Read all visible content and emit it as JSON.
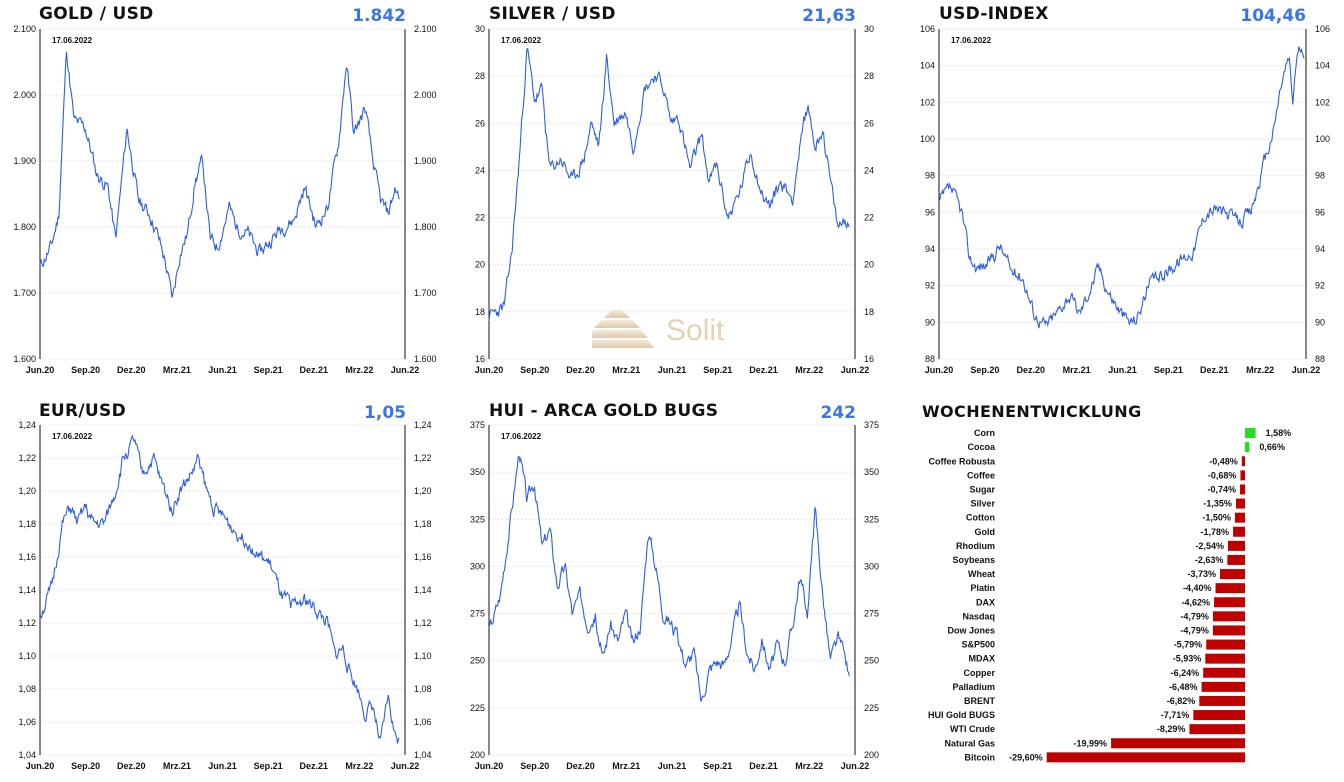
{
  "chart_data": [
    {
      "type": "line",
      "title": "GOLD / USD",
      "current_value": "1.842",
      "date_label": "17.06.2022",
      "y_ticks": [
        "1.600",
        "1.700",
        "1.800",
        "1.900",
        "2.000",
        "2.100"
      ],
      "ylim": [
        1600,
        2100
      ],
      "x_ticks": [
        "Jun.20",
        "Sep.20",
        "Dez.20",
        "Mrz.21",
        "Jun.21",
        "Sep.21",
        "Dez.21",
        "Mrz.22",
        "Jun.22"
      ],
      "color": "#2f5fe0",
      "key_points": [
        [
          0,
          1740
        ],
        [
          0.03,
          1770
        ],
        [
          0.05,
          1820
        ],
        [
          0.07,
          2070
        ],
        [
          0.09,
          1960
        ],
        [
          0.12,
          1950
        ],
        [
          0.15,
          1880
        ],
        [
          0.18,
          1860
        ],
        [
          0.2,
          1780
        ],
        [
          0.23,
          1950
        ],
        [
          0.26,
          1840
        ],
        [
          0.29,
          1820
        ],
        [
          0.31,
          1790
        ],
        [
          0.33,
          1750
        ],
        [
          0.35,
          1690
        ],
        [
          0.37,
          1760
        ],
        [
          0.39,
          1790
        ],
        [
          0.41,
          1870
        ],
        [
          0.43,
          1900
        ],
        [
          0.45,
          1780
        ],
        [
          0.47,
          1770
        ],
        [
          0.5,
          1830
        ],
        [
          0.52,
          1800
        ],
        [
          0.55,
          1790
        ],
        [
          0.58,
          1760
        ],
        [
          0.61,
          1780
        ],
        [
          0.64,
          1800
        ],
        [
          0.67,
          1810
        ],
        [
          0.7,
          1860
        ],
        [
          0.73,
          1800
        ],
        [
          0.76,
          1830
        ],
        [
          0.79,
          1930
        ],
        [
          0.81,
          2050
        ],
        [
          0.83,
          1940
        ],
        [
          0.86,
          1980
        ],
        [
          0.88,
          1900
        ],
        [
          0.9,
          1840
        ],
        [
          0.92,
          1820
        ],
        [
          0.94,
          1860
        ],
        [
          0.95,
          1842
        ]
      ]
    },
    {
      "type": "line",
      "title": "SILVER / USD",
      "current_value": "21,63",
      "date_label": "17.06.2022",
      "y_ticks": [
        "16",
        "18",
        "20",
        "22",
        "24",
        "26",
        "28",
        "30"
      ],
      "ylim": [
        16,
        30
      ],
      "x_ticks": [
        "Jun.20",
        "Sep.20",
        "Dez.20",
        "Mrz.21",
        "Jun.21",
        "Sep.21",
        "Dez.21",
        "Mrz.22",
        "Jun.22"
      ],
      "color": "#2f5fe0",
      "key_points": [
        [
          0,
          17.8
        ],
        [
          0.04,
          18.2
        ],
        [
          0.06,
          20.5
        ],
        [
          0.08,
          24.5
        ],
        [
          0.1,
          29.2
        ],
        [
          0.12,
          27
        ],
        [
          0.14,
          27.4
        ],
        [
          0.16,
          24
        ],
        [
          0.19,
          24.5
        ],
        [
          0.22,
          23.5
        ],
        [
          0.25,
          24.5
        ],
        [
          0.27,
          26
        ],
        [
          0.29,
          25
        ],
        [
          0.31,
          28.8
        ],
        [
          0.33,
          26
        ],
        [
          0.36,
          26.5
        ],
        [
          0.38,
          25
        ],
        [
          0.41,
          27.5
        ],
        [
          0.44,
          28.1
        ],
        [
          0.46,
          27.5
        ],
        [
          0.48,
          26
        ],
        [
          0.5,
          26.3
        ],
        [
          0.53,
          24
        ],
        [
          0.56,
          25.5
        ],
        [
          0.58,
          23.5
        ],
        [
          0.6,
          24.2
        ],
        [
          0.63,
          22
        ],
        [
          0.66,
          23
        ],
        [
          0.69,
          24.8
        ],
        [
          0.72,
          23
        ],
        [
          0.74,
          22.5
        ],
        [
          0.77,
          23.5
        ],
        [
          0.8,
          22.8
        ],
        [
          0.82,
          25
        ],
        [
          0.84,
          26.8
        ],
        [
          0.86,
          25
        ],
        [
          0.88,
          25.8
        ],
        [
          0.9,
          23.5
        ],
        [
          0.92,
          21.5
        ],
        [
          0.94,
          22
        ],
        [
          0.95,
          21.6
        ]
      ]
    },
    {
      "type": "line",
      "title": "USD-INDEX",
      "current_value": "104,46",
      "date_label": "17.06.2022",
      "y_ticks": [
        "88",
        "90",
        "92",
        "94",
        "96",
        "98",
        "100",
        "102",
        "104",
        "106"
      ],
      "ylim": [
        88,
        106
      ],
      "x_ticks": [
        "Jun.20",
        "Sep.20",
        "Dez.20",
        "Mrz.21",
        "Jun.21",
        "Sep.21",
        "Dez.21",
        "Mrz.22",
        "Jun.22"
      ],
      "color": "#2f5fe0",
      "key_points": [
        [
          0,
          96.5
        ],
        [
          0.03,
          97.3
        ],
        [
          0.06,
          96
        ],
        [
          0.08,
          93.5
        ],
        [
          0.1,
          93
        ],
        [
          0.13,
          93.2
        ],
        [
          0.16,
          94.2
        ],
        [
          0.19,
          92.8
        ],
        [
          0.22,
          92.5
        ],
        [
          0.25,
          90.5
        ],
        [
          0.28,
          89.8
        ],
        [
          0.31,
          90.5
        ],
        [
          0.34,
          91.5
        ],
        [
          0.37,
          90.5
        ],
        [
          0.4,
          92
        ],
        [
          0.42,
          93
        ],
        [
          0.45,
          91.5
        ],
        [
          0.48,
          90.5
        ],
        [
          0.5,
          90
        ],
        [
          0.52,
          90.2
        ],
        [
          0.55,
          92
        ],
        [
          0.58,
          92.5
        ],
        [
          0.61,
          93
        ],
        [
          0.64,
          93.5
        ],
        [
          0.67,
          94
        ],
        [
          0.7,
          96
        ],
        [
          0.73,
          96.2
        ],
        [
          0.76,
          95.8
        ],
        [
          0.79,
          95.5
        ],
        [
          0.82,
          96
        ],
        [
          0.84,
          97.5
        ],
        [
          0.86,
          99
        ],
        [
          0.88,
          100.5
        ],
        [
          0.9,
          103
        ],
        [
          0.92,
          104.5
        ],
        [
          0.93,
          102
        ],
        [
          0.94,
          104.5
        ],
        [
          0.95,
          105
        ],
        [
          0.96,
          104.4
        ]
      ]
    },
    {
      "type": "line",
      "title": "EUR/USD",
      "current_value": "1,05",
      "date_label": "17.06.2022",
      "y_ticks": [
        "1,04",
        "1,06",
        "1,08",
        "1,10",
        "1,12",
        "1,14",
        "1,16",
        "1,18",
        "1,20",
        "1,22",
        "1,24"
      ],
      "ylim": [
        1.04,
        1.24
      ],
      "x_ticks": [
        "Jun.20",
        "Sep.20",
        "Dez.20",
        "Mrz.21",
        "Jun.21",
        "Sep.21",
        "Dez.21",
        "Mrz.22",
        "Jun.22"
      ],
      "color": "#2f5fe0",
      "key_points": [
        [
          0,
          1.125
        ],
        [
          0.03,
          1.14
        ],
        [
          0.06,
          1.18
        ],
        [
          0.08,
          1.19
        ],
        [
          0.1,
          1.18
        ],
        [
          0.12,
          1.19
        ],
        [
          0.14,
          1.18
        ],
        [
          0.17,
          1.18
        ],
        [
          0.2,
          1.2
        ],
        [
          0.22,
          1.22
        ],
        [
          0.25,
          1.23
        ],
        [
          0.27,
          1.21
        ],
        [
          0.3,
          1.22
        ],
        [
          0.32,
          1.205
        ],
        [
          0.35,
          1.19
        ],
        [
          0.37,
          1.2
        ],
        [
          0.4,
          1.21
        ],
        [
          0.42,
          1.22
        ],
        [
          0.44,
          1.2
        ],
        [
          0.46,
          1.19
        ],
        [
          0.48,
          1.185
        ],
        [
          0.5,
          1.18
        ],
        [
          0.52,
          1.175
        ],
        [
          0.55,
          1.17
        ],
        [
          0.58,
          1.16
        ],
        [
          0.61,
          1.155
        ],
        [
          0.64,
          1.135
        ],
        [
          0.67,
          1.13
        ],
        [
          0.7,
          1.135
        ],
        [
          0.72,
          1.13
        ],
        [
          0.74,
          1.125
        ],
        [
          0.76,
          1.12
        ],
        [
          0.78,
          1.1
        ],
        [
          0.8,
          1.105
        ],
        [
          0.82,
          1.09
        ],
        [
          0.84,
          1.08
        ],
        [
          0.86,
          1.065
        ],
        [
          0.88,
          1.07
        ],
        [
          0.9,
          1.045
        ],
        [
          0.92,
          1.075
        ],
        [
          0.94,
          1.05
        ],
        [
          0.95,
          1.05
        ]
      ]
    },
    {
      "type": "line",
      "title": "HUI - ARCA GOLD BUGS",
      "current_value": "242",
      "date_label": "17.06.2022",
      "y_ticks": [
        "200",
        "225",
        "250",
        "275",
        "300",
        "325",
        "350",
        "375"
      ],
      "ylim": [
        200,
        375
      ],
      "x_ticks": [
        "Jun.20",
        "Sep.20",
        "Dez.20",
        "Mrz.21",
        "Jun.21",
        "Sep.21",
        "Dez.21",
        "Mrz.22",
        "Jun.22"
      ],
      "color": "#2f5fe0",
      "key_points": [
        [
          0,
          265
        ],
        [
          0.03,
          285
        ],
        [
          0.06,
          330
        ],
        [
          0.08,
          362
        ],
        [
          0.1,
          335
        ],
        [
          0.12,
          345
        ],
        [
          0.14,
          310
        ],
        [
          0.16,
          320
        ],
        [
          0.18,
          290
        ],
        [
          0.2,
          300
        ],
        [
          0.22,
          275
        ],
        [
          0.24,
          285
        ],
        [
          0.26,
          270
        ],
        [
          0.28,
          275
        ],
        [
          0.3,
          250
        ],
        [
          0.32,
          270
        ],
        [
          0.34,
          260
        ],
        [
          0.36,
          275
        ],
        [
          0.38,
          258
        ],
        [
          0.4,
          270
        ],
        [
          0.42,
          320
        ],
        [
          0.44,
          300
        ],
        [
          0.46,
          275
        ],
        [
          0.48,
          270
        ],
        [
          0.5,
          260
        ],
        [
          0.52,
          248
        ],
        [
          0.54,
          255
        ],
        [
          0.56,
          228
        ],
        [
          0.58,
          245
        ],
        [
          0.6,
          250
        ],
        [
          0.62,
          248
        ],
        [
          0.64,
          262
        ],
        [
          0.66,
          280
        ],
        [
          0.68,
          255
        ],
        [
          0.7,
          245
        ],
        [
          0.72,
          262
        ],
        [
          0.74,
          245
        ],
        [
          0.76,
          258
        ],
        [
          0.78,
          250
        ],
        [
          0.8,
          268
        ],
        [
          0.82,
          295
        ],
        [
          0.84,
          275
        ],
        [
          0.86,
          330
        ],
        [
          0.88,
          285
        ],
        [
          0.9,
          250
        ],
        [
          0.92,
          262
        ],
        [
          0.94,
          250
        ],
        [
          0.95,
          242
        ]
      ]
    },
    {
      "type": "bar",
      "orientation": "horizontal",
      "title": "WOCHENENTWICKLUNG",
      "categories": [
        "Corn",
        "Cocoa",
        "Coffee Robusta",
        "Coffee",
        "Sugar",
        "Silver",
        "Cotton",
        "Gold",
        "Rhodium",
        "Soybeans",
        "Wheat",
        "Platin",
        "DAX",
        "Nasdaq",
        "Dow Jones",
        "S&P500",
        "MDAX",
        "Copper",
        "Palladium",
        "BRENT",
        "HUI Gold BUGS",
        "WTI Crude",
        "Natural Gas",
        "Bitcoin"
      ],
      "values": [
        1.58,
        0.66,
        -0.48,
        -0.68,
        -0.74,
        -1.35,
        -1.5,
        -1.78,
        -2.54,
        -2.63,
        -3.73,
        -4.4,
        -4.62,
        -4.79,
        -4.79,
        -5.79,
        -5.93,
        -6.24,
        -6.48,
        -6.82,
        -7.71,
        -8.29,
        -19.99,
        -29.6
      ],
      "value_labels": [
        "1,58%",
        "0,66%",
        "-0,48%",
        "-0,68%",
        "-0,74%",
        "-1,35%",
        "-1,50%",
        "-1,78%",
        "-2,54%",
        "-2,63%",
        "-3,73%",
        "-4,40%",
        "-4,62%",
        "-4,79%",
        "-4,79%",
        "-5,79%",
        "-5,93%",
        "-6,24%",
        "-6,48%",
        "-6,82%",
        "-7,71%",
        "-8,29%",
        "-19,99%",
        "-29,60%"
      ],
      "positive_color": "#22dd22",
      "negative_color": "#c00000"
    }
  ],
  "watermark": {
    "text": "Solit"
  }
}
